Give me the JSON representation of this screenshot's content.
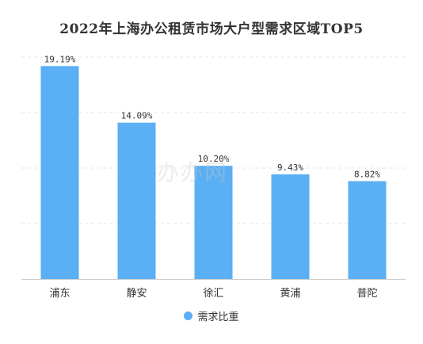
{
  "chart_data": {
    "type": "bar",
    "title": "2022年上海办公租赁市场大户型需求区域TOP5",
    "categories": [
      "浦东",
      "静安",
      "徐汇",
      "黄浦",
      "普陀"
    ],
    "series": [
      {
        "name": "需求比重",
        "values": [
          19.19,
          14.09,
          10.2,
          9.43,
          8.82
        ],
        "labels": [
          "19.19%",
          "14.09%",
          "10.20%",
          "9.43%",
          "8.82%"
        ],
        "color": "#5aaff5"
      }
    ],
    "ylim": [
      0,
      20
    ],
    "grid": true,
    "legend": "bottom-center"
  },
  "watermark": "办办网"
}
